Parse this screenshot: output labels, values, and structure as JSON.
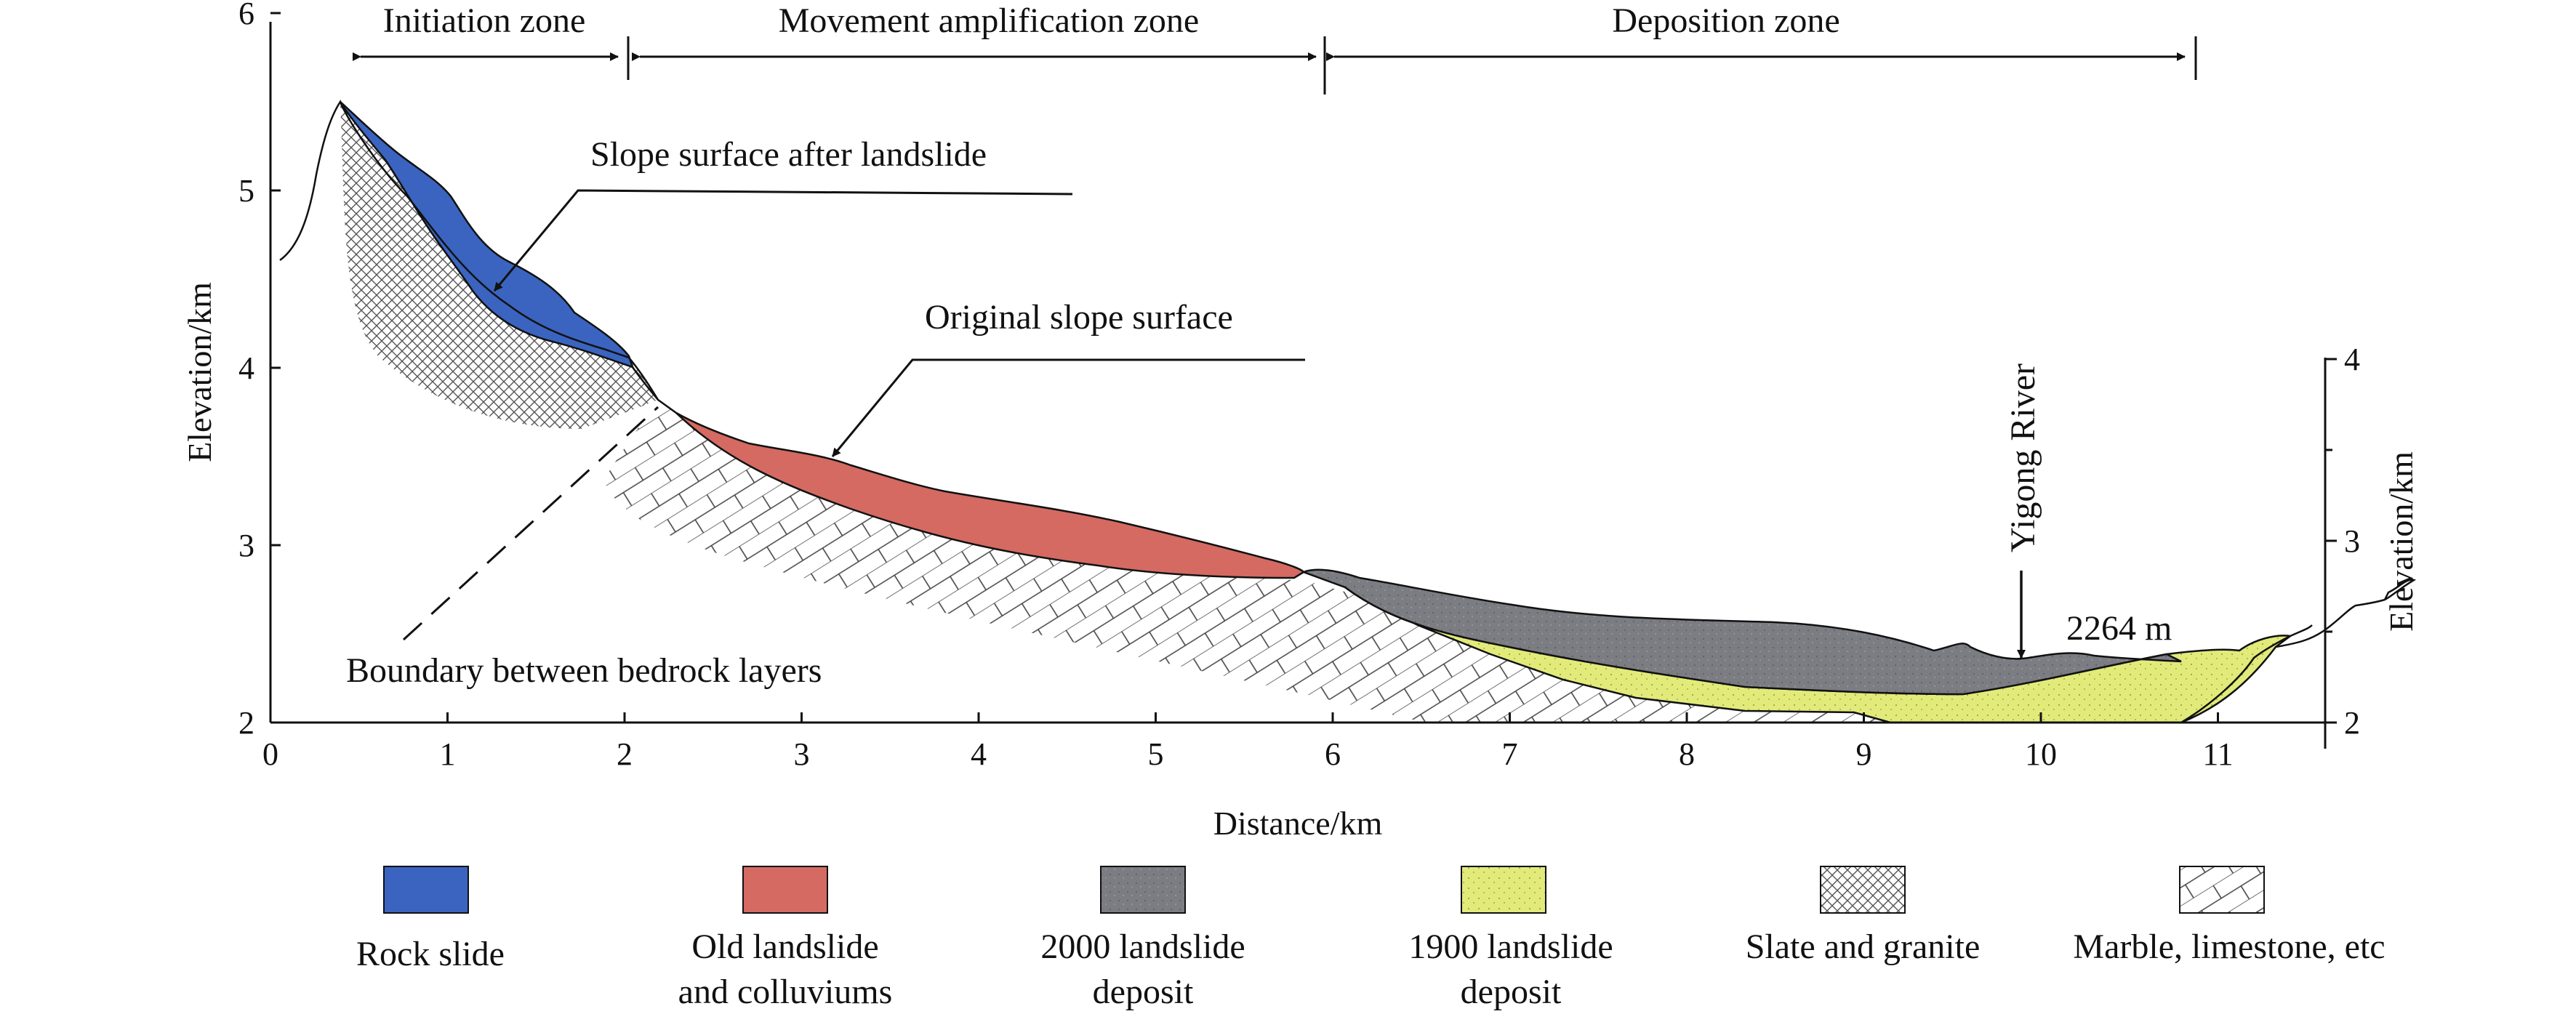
{
  "figure": {
    "x_axis": {
      "label": "Distance/km",
      "range": [
        0,
        11.5
      ],
      "ticks": [
        "0",
        "1",
        "2",
        "3",
        "4",
        "5",
        "6",
        "7",
        "8",
        "9",
        "10",
        "11"
      ]
    },
    "y_axis_left": {
      "label": "Elevation/km",
      "range": [
        2,
        6
      ],
      "ticks": [
        "2",
        "3",
        "4",
        "5",
        "6"
      ]
    },
    "y_axis_right": {
      "label": "Elevation/km",
      "ticks": [
        "2",
        "3",
        "4"
      ]
    },
    "zones": [
      {
        "label": "Initiation zone",
        "from_km": 0.4,
        "to_km": 2.1
      },
      {
        "label": "Movement amplification zone",
        "from_km": 2.1,
        "to_km": 6.0
      },
      {
        "label": "Deposition zone",
        "from_km": 6.0,
        "to_km": 10.85
      }
    ],
    "annotations": {
      "slope_after": "Slope surface after landslide",
      "original_slope": "Original slope surface",
      "boundary": "Boundary between bedrock layers",
      "river": "Yigong River",
      "river_elev": "2264 m"
    },
    "legend": [
      {
        "key": "rock_slide",
        "lines": [
          "Rock slide"
        ],
        "color": "#3a64c0"
      },
      {
        "key": "old_landslide",
        "lines": [
          "Old landslide",
          "and colluviums"
        ],
        "color": "#d46a62"
      },
      {
        "key": "deposit_2000",
        "lines": [
          "2000 landslide",
          "deposit"
        ],
        "color": "#7b7d82"
      },
      {
        "key": "deposit_1900",
        "lines": [
          "1900 landslide",
          "deposit"
        ],
        "color": "#e2eb7a"
      },
      {
        "key": "slate_granite",
        "lines": [
          "Slate and granite"
        ],
        "color": "#ffffff"
      },
      {
        "key": "marble_limestone",
        "lines": [
          "Marble, limestone, etc"
        ],
        "color": "#ffffff"
      }
    ]
  }
}
